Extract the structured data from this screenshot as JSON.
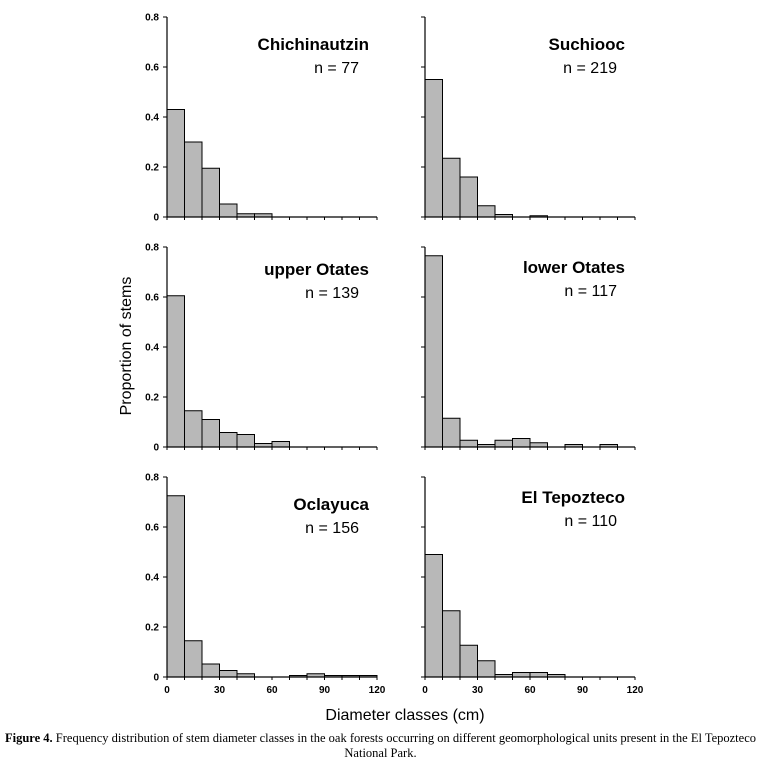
{
  "chart_data": [
    {
      "type": "bar",
      "title": "Chichinautzin",
      "n_label": "n = 77",
      "categories": [
        "0-10",
        "10-20",
        "20-30",
        "30-40",
        "40-50",
        "50-60",
        "60-70",
        "70-80",
        "80-90",
        "90-100",
        "100-110",
        "110-120"
      ],
      "values": [
        0.43,
        0.3,
        0.195,
        0.052,
        0.013,
        0.013,
        0,
        0,
        0,
        0,
        0,
        0
      ],
      "ylim": [
        0,
        0.8
      ],
      "xlim": [
        0,
        120
      ]
    },
    {
      "type": "bar",
      "title": "Suchiooc",
      "n_label": "n = 219",
      "categories": [
        "0-10",
        "10-20",
        "20-30",
        "30-40",
        "40-50",
        "50-60",
        "60-70",
        "70-80",
        "80-90",
        "90-100",
        "100-110",
        "110-120"
      ],
      "values": [
        0.55,
        0.235,
        0.16,
        0.045,
        0.01,
        0,
        0.005,
        0,
        0,
        0,
        0,
        0
      ],
      "ylim": [
        0,
        0.8
      ],
      "xlim": [
        0,
        120
      ]
    },
    {
      "type": "bar",
      "title": "upper Otates",
      "n_label": "n = 139",
      "categories": [
        "0-10",
        "10-20",
        "20-30",
        "30-40",
        "40-50",
        "50-60",
        "60-70",
        "70-80",
        "80-90",
        "90-100",
        "100-110",
        "110-120"
      ],
      "values": [
        0.605,
        0.145,
        0.11,
        0.058,
        0.05,
        0.014,
        0.022,
        0,
        0,
        0,
        0,
        0
      ],
      "ylim": [
        0,
        0.8
      ],
      "xlim": [
        0,
        120
      ]
    },
    {
      "type": "bar",
      "title": "lower Otates",
      "n_label": "n = 117",
      "categories": [
        "0-10",
        "10-20",
        "20-30",
        "30-40",
        "40-50",
        "50-60",
        "60-70",
        "70-80",
        "80-90",
        "90-100",
        "100-110",
        "110-120"
      ],
      "values": [
        0.765,
        0.115,
        0.027,
        0.01,
        0.027,
        0.034,
        0.017,
        0,
        0.01,
        0,
        0.01,
        0
      ],
      "ylim": [
        0,
        0.8
      ],
      "xlim": [
        0,
        120
      ]
    },
    {
      "type": "bar",
      "title": "Oclayuca",
      "n_label": "n = 156",
      "categories": [
        "0-10",
        "10-20",
        "20-30",
        "30-40",
        "40-50",
        "50-60",
        "60-70",
        "70-80",
        "80-90",
        "90-100",
        "100-110",
        "110-120"
      ],
      "values": [
        0.725,
        0.145,
        0.052,
        0.026,
        0.013,
        0,
        0,
        0.006,
        0.013,
        0.006,
        0.006,
        0.006
      ],
      "ylim": [
        0,
        0.8
      ],
      "xlim": [
        0,
        120
      ]
    },
    {
      "type": "bar",
      "title": "El Tepozteco",
      "n_label": "n = 110",
      "categories": [
        "0-10",
        "10-20",
        "20-30",
        "30-40",
        "40-50",
        "50-60",
        "60-70",
        "70-80",
        "80-90",
        "90-100",
        "100-110",
        "110-120"
      ],
      "values": [
        0.49,
        0.265,
        0.127,
        0.065,
        0.01,
        0.018,
        0.018,
        0.01,
        0,
        0,
        0,
        0
      ],
      "ylim": [
        0,
        0.8
      ],
      "xlim": [
        0,
        120
      ]
    }
  ],
  "axes": {
    "y_ticks": [
      "0",
      "0.2",
      "0.4",
      "0.6",
      "0.8"
    ],
    "y_tick_values": [
      0,
      0.2,
      0.4,
      0.6,
      0.8
    ],
    "x_ticks": [
      "0",
      "30",
      "60",
      "90",
      "120"
    ],
    "x_tick_values": [
      0,
      30,
      60,
      90,
      120
    ],
    "ylabel": "Proportion of stems",
    "xlabel": "Diameter classes (cm)"
  },
  "caption": {
    "label": "Figure 4.",
    "text": " Frequency distribution of stem diameter classes in the oak forests occurring on different geomorphological units present in the El Tepozteco National Park."
  }
}
